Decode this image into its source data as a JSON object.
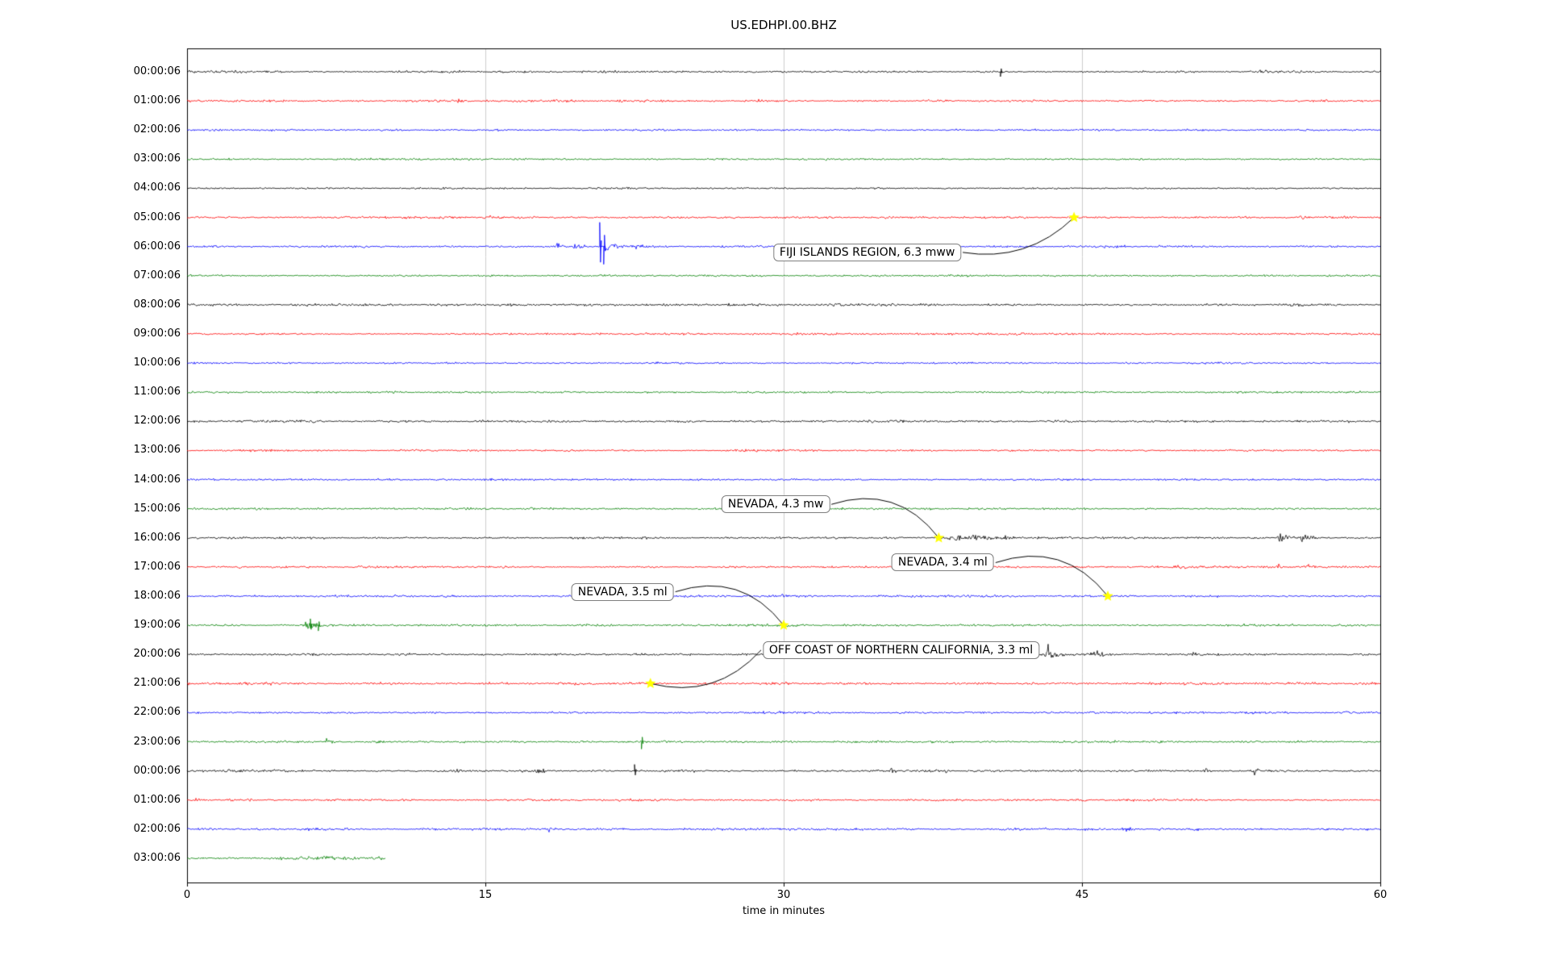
{
  "chart_data": {
    "type": "line",
    "title": "US.EDHPI.00.BHZ",
    "xlabel": "time in minutes",
    "x_range_minutes": [
      0,
      60
    ],
    "x_ticks": [
      "0",
      "15",
      "30",
      "45",
      "60"
    ],
    "grid": "vertical gridlines at 15, 30, 45",
    "gridline_color": "#cccccc",
    "marker_color": "#ffff00",
    "trace_color_cycle": [
      "#000000",
      "#ff0000",
      "#0000ff",
      "#008000"
    ],
    "rows": [
      {
        "label": "00:00:06",
        "color": "#000000",
        "amp": 1.2,
        "bursts": [
          [
            53.8,
            0.9,
            3
          ]
        ],
        "spikes": [
          [
            40.9,
            -6
          ]
        ]
      },
      {
        "label": "01:00:06",
        "color": "#ff0000",
        "amp": 1.2,
        "bursts": [
          [
            12.3,
            0.5,
            3
          ],
          [
            13.6,
            0.5,
            3.5
          ],
          [
            28.6,
            0.6,
            2.5
          ]
        ]
      },
      {
        "label": "02:00:06",
        "color": "#0000ff",
        "amp": 1.2,
        "bursts": [
          [
            1.2,
            0.4,
            2
          ]
        ]
      },
      {
        "label": "03:00:06",
        "color": "#008000",
        "amp": 1.1,
        "bursts": []
      },
      {
        "label": "04:00:06",
        "color": "#000000",
        "amp": 1.0,
        "bursts": []
      },
      {
        "label": "05:00:06",
        "color": "#ff0000",
        "amp": 1.2,
        "bursts": [
          [
            15.1,
            0.5,
            4
          ],
          [
            15.7,
            0.4,
            3
          ],
          [
            55.9,
            0.6,
            3.5
          ]
        ]
      },
      {
        "label": "06:00:06",
        "color": "#0000ff",
        "amp": 1.2,
        "bursts": [
          [
            18.5,
            0.6,
            4.5
          ],
          [
            19.4,
            0.7,
            7
          ],
          [
            20.9,
            1.6,
            7
          ],
          [
            22.4,
            0.8,
            3
          ]
        ],
        "spikes": [
          [
            20.75,
            30
          ],
          [
            20.95,
            -22
          ]
        ]
      },
      {
        "label": "07:00:06",
        "color": "#008000",
        "amp": 1.1,
        "bursts": []
      },
      {
        "label": "08:00:06",
        "color": "#000000",
        "amp": 1.3,
        "bursts": []
      },
      {
        "label": "09:00:06",
        "color": "#ff0000",
        "amp": 1.2,
        "bursts": []
      },
      {
        "label": "10:00:06",
        "color": "#0000ff",
        "amp": 1.1,
        "bursts": []
      },
      {
        "label": "11:00:06",
        "color": "#008000",
        "amp": 1.1,
        "bursts": []
      },
      {
        "label": "12:00:06",
        "color": "#000000",
        "amp": 1.3,
        "bursts": []
      },
      {
        "label": "13:00:06",
        "color": "#ff0000",
        "amp": 1.1,
        "bursts": []
      },
      {
        "label": "14:00:06",
        "color": "#0000ff",
        "amp": 1.2,
        "bursts": []
      },
      {
        "label": "15:00:06",
        "color": "#008000",
        "amp": 1.2,
        "bursts": []
      },
      {
        "label": "16:00:06",
        "color": "#000000",
        "amp": 1.2,
        "bursts": [
          [
            38.2,
            1.2,
            9
          ],
          [
            39.4,
            1.6,
            6
          ],
          [
            41.0,
            0.8,
            3
          ],
          [
            54.8,
            0.9,
            10
          ],
          [
            55.9,
            1.1,
            7
          ]
        ]
      },
      {
        "label": "17:00:06",
        "color": "#ff0000",
        "amp": 1.2,
        "bursts": [
          [
            2.5,
            0.6,
            3
          ],
          [
            49.7,
            0.6,
            3
          ],
          [
            50.5,
            0.3,
            2.5
          ],
          [
            54.8,
            0.4,
            3
          ],
          [
            56.3,
            0.4,
            3
          ]
        ]
      },
      {
        "label": "18:00:06",
        "color": "#0000ff",
        "amp": 1.3,
        "bursts": [
          [
            5.4,
            0.5,
            2.5
          ],
          [
            29.8,
            0.4,
            2
          ],
          [
            36.4,
            0.5,
            2.5
          ],
          [
            46.2,
            0.5,
            2
          ]
        ]
      },
      {
        "label": "19:00:06",
        "color": "#008000",
        "amp": 1.3,
        "bursts": [
          [
            2.1,
            0.6,
            3
          ],
          [
            5.8,
            1.5,
            4.5
          ]
        ],
        "spikes": [
          [
            6.2,
            8
          ],
          [
            6.6,
            -7
          ]
        ]
      },
      {
        "label": "20:00:06",
        "color": "#000000",
        "amp": 1.2,
        "bursts": [
          [
            6.1,
            0.4,
            3
          ],
          [
            38.0,
            0.4,
            2.5
          ],
          [
            43.1,
            1.1,
            11
          ],
          [
            45.4,
            1.1,
            9
          ],
          [
            50.5,
            0.6,
            4
          ]
        ]
      },
      {
        "label": "21:00:06",
        "color": "#ff0000",
        "amp": 1.4,
        "bursts": [
          [
            23.2,
            0.5,
            2
          ]
        ]
      },
      {
        "label": "22:00:06",
        "color": "#0000ff",
        "amp": 1.3,
        "bursts": []
      },
      {
        "label": "23:00:06",
        "color": "#008000",
        "amp": 1.3,
        "bursts": [
          [
            6.9,
            0.7,
            3.5
          ],
          [
            9.5,
            0.6,
            4
          ],
          [
            13.6,
            0.6,
            3
          ],
          [
            19.8,
            0.7,
            3
          ],
          [
            23.8,
            0.6,
            3
          ]
        ],
        "spikes": [
          [
            22.85,
            -9
          ]
        ]
      },
      {
        "label": "00:00:06",
        "color": "#000000",
        "amp": 1.3,
        "bursts": [
          [
            13.4,
            0.6,
            4
          ],
          [
            17.4,
            0.7,
            4
          ],
          [
            35.3,
            0.6,
            4
          ],
          [
            38.0,
            0.5,
            3.5
          ],
          [
            51.1,
            0.5,
            4
          ],
          [
            53.6,
            0.6,
            4
          ]
        ],
        "spikes": [
          [
            22.5,
            8
          ]
        ]
      },
      {
        "label": "01:00:06",
        "color": "#ff0000",
        "amp": 1.2,
        "bursts": [
          [
            0.4,
            0.5,
            2.5
          ]
        ]
      },
      {
        "label": "02:00:06",
        "color": "#0000ff",
        "amp": 1.3,
        "bursts": [
          [
            18.1,
            0.7,
            4
          ],
          [
            47.0,
            0.7,
            4
          ],
          [
            48.8,
            0.6,
            4
          ],
          [
            50.6,
            0.6,
            3.5
          ]
        ]
      },
      {
        "label": "03:00:06",
        "color": "#008000",
        "amp": 1.6,
        "end": 10,
        "bursts": [
          [
            6.5,
            2.0,
            2.5
          ]
        ]
      }
    ],
    "events": [
      {
        "label": "FIJI ISLANDS REGION, 6.3 mww",
        "star_minute": 44.6,
        "star_row": 5,
        "box_minute": 34.2,
        "box_row": 6.2,
        "edge": "right",
        "rad": -0.25
      },
      {
        "label": "NEVADA, 4.3 mw",
        "star_minute": 37.8,
        "star_row": 16,
        "box_minute": 29.6,
        "box_row": 14.85,
        "edge": "right",
        "rad": 0.35
      },
      {
        "label": "NEVADA, 3.4 ml",
        "star_minute": 46.3,
        "star_row": 18,
        "box_minute": 38.0,
        "box_row": 16.85,
        "edge": "right",
        "rad": 0.35
      },
      {
        "label": "NEVADA, 3.5 ml",
        "star_minute": 30.0,
        "star_row": 19,
        "box_minute": 21.9,
        "box_row": 17.85,
        "edge": "right",
        "rad": 0.35
      },
      {
        "label": "OFF COAST OF NORTHERN CALIFORNIA, 3.3 ml",
        "star_minute": 23.3,
        "star_row": 21,
        "box_minute": 35.9,
        "box_row": 19.85,
        "edge": "left",
        "rad": 0.3
      }
    ]
  }
}
